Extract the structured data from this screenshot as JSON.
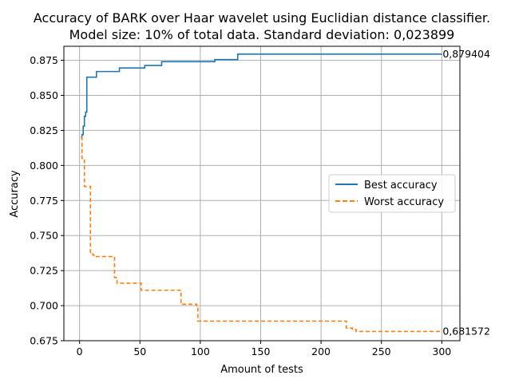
{
  "chart_data": {
    "type": "line",
    "title_line1": "Accuracy of BARK over Haar wavelet using Euclidian distance classifier.",
    "title_line2": "Model size: 10% of total data. Standard deviation: 0,023899",
    "xlabel": "Amount of tests",
    "ylabel": "Accuracy",
    "xlim": [
      -13,
      315
    ],
    "ylim": [
      0.675,
      0.885
    ],
    "xticks": [
      0,
      50,
      100,
      150,
      200,
      250,
      300
    ],
    "xtick_labels": [
      "0",
      "50",
      "100",
      "150",
      "200",
      "250",
      "300"
    ],
    "yticks": [
      0.675,
      0.7,
      0.725,
      0.75,
      0.775,
      0.8,
      0.825,
      0.85,
      0.875
    ],
    "ytick_labels": [
      "0.675",
      "0.700",
      "0.725",
      "0.750",
      "0.775",
      "0.800",
      "0.825",
      "0.850",
      "0.875"
    ],
    "grid": true,
    "legend_position": "center-right",
    "series": [
      {
        "name": "Best accuracy",
        "color": "#1f77b4",
        "style": "solid",
        "x": [
          1,
          2,
          3,
          4,
          5,
          6,
          7,
          14,
          33,
          54,
          68,
          112,
          131,
          300
        ],
        "y": [
          0.82,
          0.822,
          0.828,
          0.835,
          0.838,
          0.863,
          0.863,
          0.867,
          0.8695,
          0.8713,
          0.874,
          0.8755,
          0.8794,
          0.879404
        ]
      },
      {
        "name": "Worst accuracy",
        "color": "#ff7f0e",
        "style": "dashed",
        "x": [
          1,
          2,
          4,
          7,
          9,
          11,
          13,
          27,
          29,
          31,
          50,
          51,
          83,
          84,
          97,
          98,
          219,
          221,
          226,
          229,
          300
        ],
        "y": [
          0.82,
          0.805,
          0.785,
          0.785,
          0.738,
          0.736,
          0.735,
          0.735,
          0.72,
          0.716,
          0.716,
          0.711,
          0.711,
          0.701,
          0.7,
          0.689,
          0.689,
          0.684,
          0.683,
          0.6816,
          0.681572
        ]
      }
    ],
    "annotations": [
      {
        "text": "0,879404",
        "x": 300,
        "y": 0.879404
      },
      {
        "text": "0,681572",
        "x": 300,
        "y": 0.681572
      }
    ]
  }
}
